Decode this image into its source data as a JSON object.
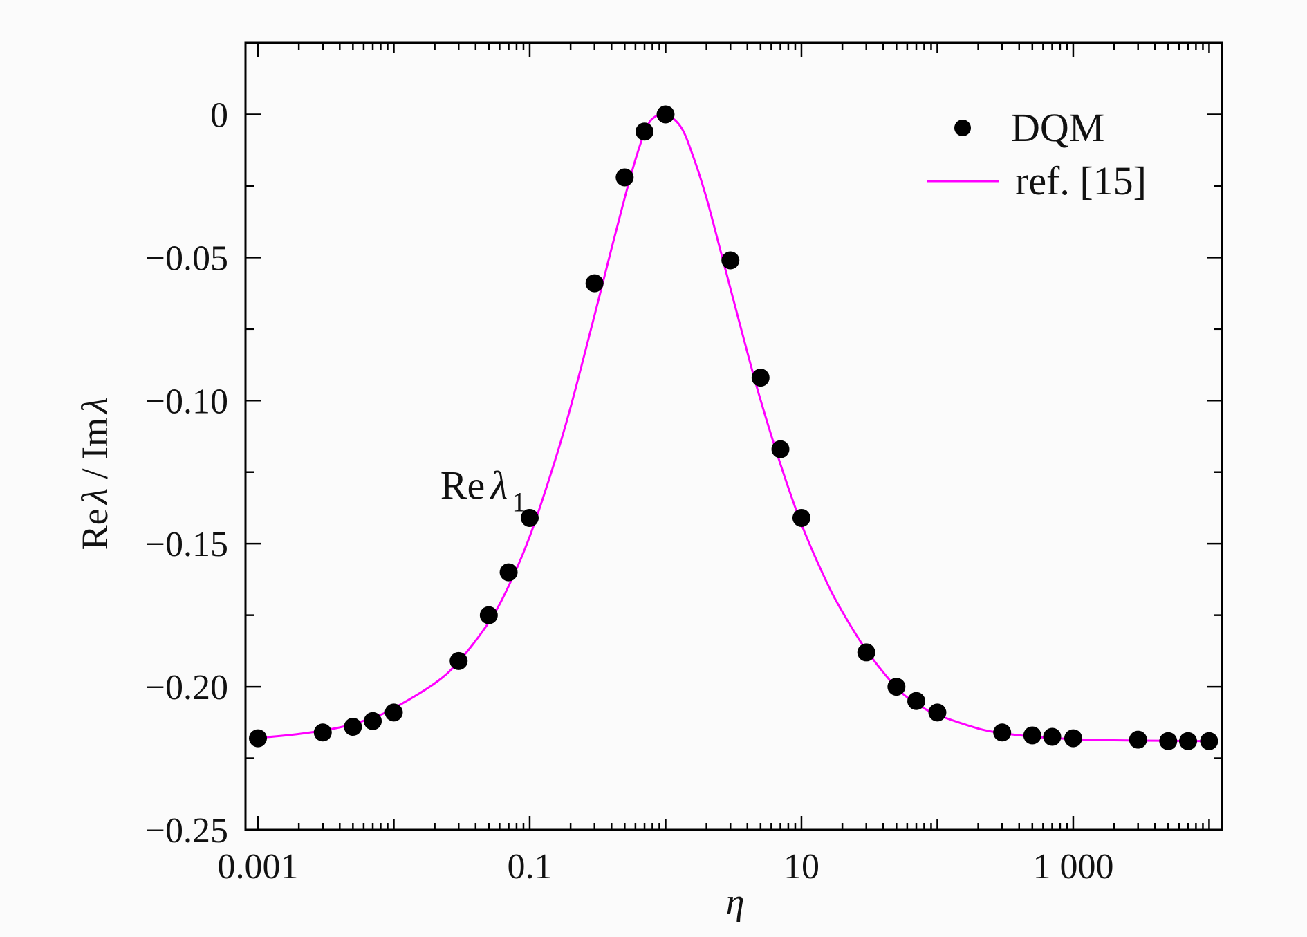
{
  "chart_data": {
    "type": "scatter",
    "x_scale": "log",
    "xlim": [
      0.001,
      12000
    ],
    "ylim": [
      -0.25,
      0.025
    ],
    "grid": false,
    "legend_position": "top-right",
    "colors": {
      "points": "#000000",
      "line": "#ff00ff",
      "axes": "#000000"
    },
    "xlabel": "η",
    "ylabel": {
      "prefix": "Re",
      "sym1": "λ",
      "middle": " / Im",
      "sym2": "λ"
    },
    "x_ticks": [
      {
        "value": 0.001,
        "label": "0.001"
      },
      {
        "value": 0.1,
        "label": "0.1"
      },
      {
        "value": 10,
        "label": "10"
      },
      {
        "value": 1000,
        "label": "1 000"
      }
    ],
    "y_ticks": [
      {
        "value": 0,
        "label": "0"
      },
      {
        "value": -0.05,
        "label": "−0.05"
      },
      {
        "value": -0.1,
        "label": "−0.10"
      },
      {
        "value": -0.15,
        "label": "−0.15"
      },
      {
        "value": -0.2,
        "label": "−0.20"
      },
      {
        "value": -0.25,
        "label": "−0.25"
      }
    ],
    "annotation": {
      "prefix": "Re",
      "symbol": "λ",
      "subscript": "1",
      "x": 0.022,
      "y": -0.13
    },
    "series": [
      {
        "name": "DQM",
        "kind": "points",
        "x": [
          0.001,
          0.003,
          0.005,
          0.007,
          0.01,
          0.03,
          0.05,
          0.07,
          0.1,
          0.3,
          0.5,
          0.7,
          1,
          3,
          5,
          7,
          10,
          30,
          50,
          70,
          100,
          300,
          500,
          700,
          1000,
          3000,
          5000,
          7000,
          10000
        ],
        "y": [
          -0.218,
          -0.216,
          -0.214,
          -0.212,
          -0.209,
          -0.191,
          -0.175,
          -0.16,
          -0.141,
          -0.059,
          -0.022,
          -0.006,
          0.0,
          -0.051,
          -0.092,
          -0.117,
          -0.141,
          -0.188,
          -0.2,
          -0.205,
          -0.209,
          -0.216,
          -0.217,
          -0.2175,
          -0.218,
          -0.2185,
          -0.219,
          -0.219,
          -0.219
        ]
      },
      {
        "name": "ref. [15]",
        "kind": "line",
        "x": [
          0.001,
          0.002,
          0.004,
          0.007,
          0.01,
          0.02,
          0.03,
          0.05,
          0.07,
          0.1,
          0.15,
          0.2,
          0.3,
          0.4,
          0.5,
          0.6,
          0.7,
          0.8,
          1,
          1.3,
          1.6,
          2,
          2.5,
          3,
          4,
          5,
          7,
          10,
          15,
          20,
          30,
          50,
          70,
          100,
          200,
          300,
          500,
          1000,
          2000,
          5000,
          10000
        ],
        "y": [
          -0.2179,
          -0.2165,
          -0.2142,
          -0.2108,
          -0.2075,
          -0.1988,
          -0.1912,
          -0.1775,
          -0.1648,
          -0.1475,
          -0.1225,
          -0.1023,
          -0.0702,
          -0.0469,
          -0.0292,
          -0.0158,
          -0.0064,
          -0.0015,
          0.0,
          -0.0045,
          -0.0148,
          -0.0292,
          -0.0465,
          -0.0608,
          -0.0832,
          -0.0998,
          -0.1222,
          -0.1432,
          -0.1625,
          -0.1738,
          -0.1872,
          -0.2003,
          -0.2058,
          -0.2098,
          -0.2146,
          -0.2162,
          -0.2174,
          -0.2183,
          -0.2187,
          -0.2189,
          -0.219
        ]
      }
    ]
  }
}
